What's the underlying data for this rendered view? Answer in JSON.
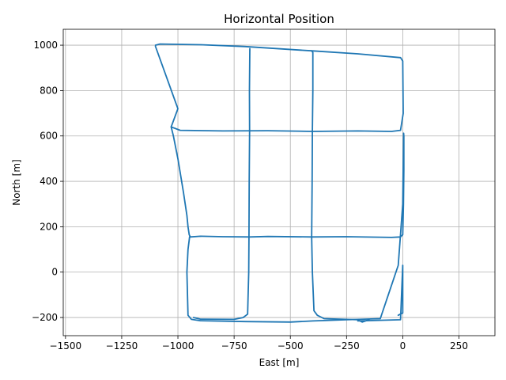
{
  "chart_data": {
    "type": "line",
    "title": "Horizontal Position",
    "xlabel": "East [m]",
    "ylabel": "North [m]",
    "xlim": [
      -1510,
      410
    ],
    "ylim": [
      -280,
      1070
    ],
    "grid": true,
    "x_ticks": [
      -1500,
      -1250,
      -1000,
      -750,
      -500,
      -250,
      0,
      250
    ],
    "x_tick_labels": [
      "−1500",
      "−1250",
      "−1000",
      "−750",
      "−500",
      "−250",
      "0",
      "250"
    ],
    "y_ticks": [
      -200,
      0,
      200,
      400,
      600,
      800,
      1000
    ],
    "y_tick_labels": [
      "−200",
      "0",
      "200",
      "400",
      "600",
      "800",
      "1000"
    ],
    "line_color": "#1f77b4",
    "series": [
      {
        "x": [
          -1100,
          -1080,
          -900,
          -700,
          -405,
          -200,
          -10,
          0,
          2,
          -10,
          -50,
          -200,
          -400,
          -600,
          -800,
          -990,
          -1030,
          -1000,
          -1100
        ],
        "y": [
          1000,
          1005,
          1002,
          994,
          975,
          962,
          945,
          930,
          700,
          625,
          620,
          622,
          620,
          623,
          622,
          625,
          640,
          720,
          995
        ]
      },
      {
        "x": [
          -1030,
          -1020,
          -1000,
          -975,
          -960,
          -955,
          -950,
          -945
        ],
        "y": [
          640,
          600,
          500,
          350,
          250,
          200,
          165,
          155
        ]
      },
      {
        "x": [
          -945,
          -900,
          -800,
          -680,
          -600,
          -405,
          -250,
          -50,
          -10,
          0,
          3,
          5,
          5,
          4,
          0,
          -20,
          -100,
          -250,
          -400,
          -500,
          -700,
          -900,
          -940,
          -955,
          -960,
          -955,
          -948
        ],
        "y": [
          155,
          158,
          156,
          155,
          157,
          155,
          156,
          153,
          155,
          165,
          300,
          450,
          600,
          612,
          300,
          30,
          -205,
          -210,
          -215,
          -220,
          -218,
          -214,
          -208,
          -190,
          0,
          100,
          155
        ]
      },
      {
        "x": [
          -680,
          -680,
          -682,
          -681,
          -683,
          -684,
          -685,
          -690,
          -710,
          -750,
          -900,
          -930
        ],
        "y": [
          975,
          985,
          800,
          620,
          400,
          155,
          0,
          -185,
          -200,
          -208,
          -207,
          -200
        ]
      },
      {
        "x": [
          -405,
          -400,
          -400,
          -402,
          -403,
          -405,
          -402,
          -395,
          -380,
          -350,
          -250,
          -200,
          -180,
          -150
        ],
        "y": [
          975,
          968,
          800,
          620,
          400,
          155,
          0,
          -170,
          -190,
          -205,
          -208,
          -210,
          -220,
          -210
        ]
      },
      {
        "x": [
          -20,
          0,
          0,
          0,
          -10,
          -200
        ],
        "y": [
          -190,
          -180,
          0,
          30,
          -210,
          -215
        ]
      }
    ]
  }
}
